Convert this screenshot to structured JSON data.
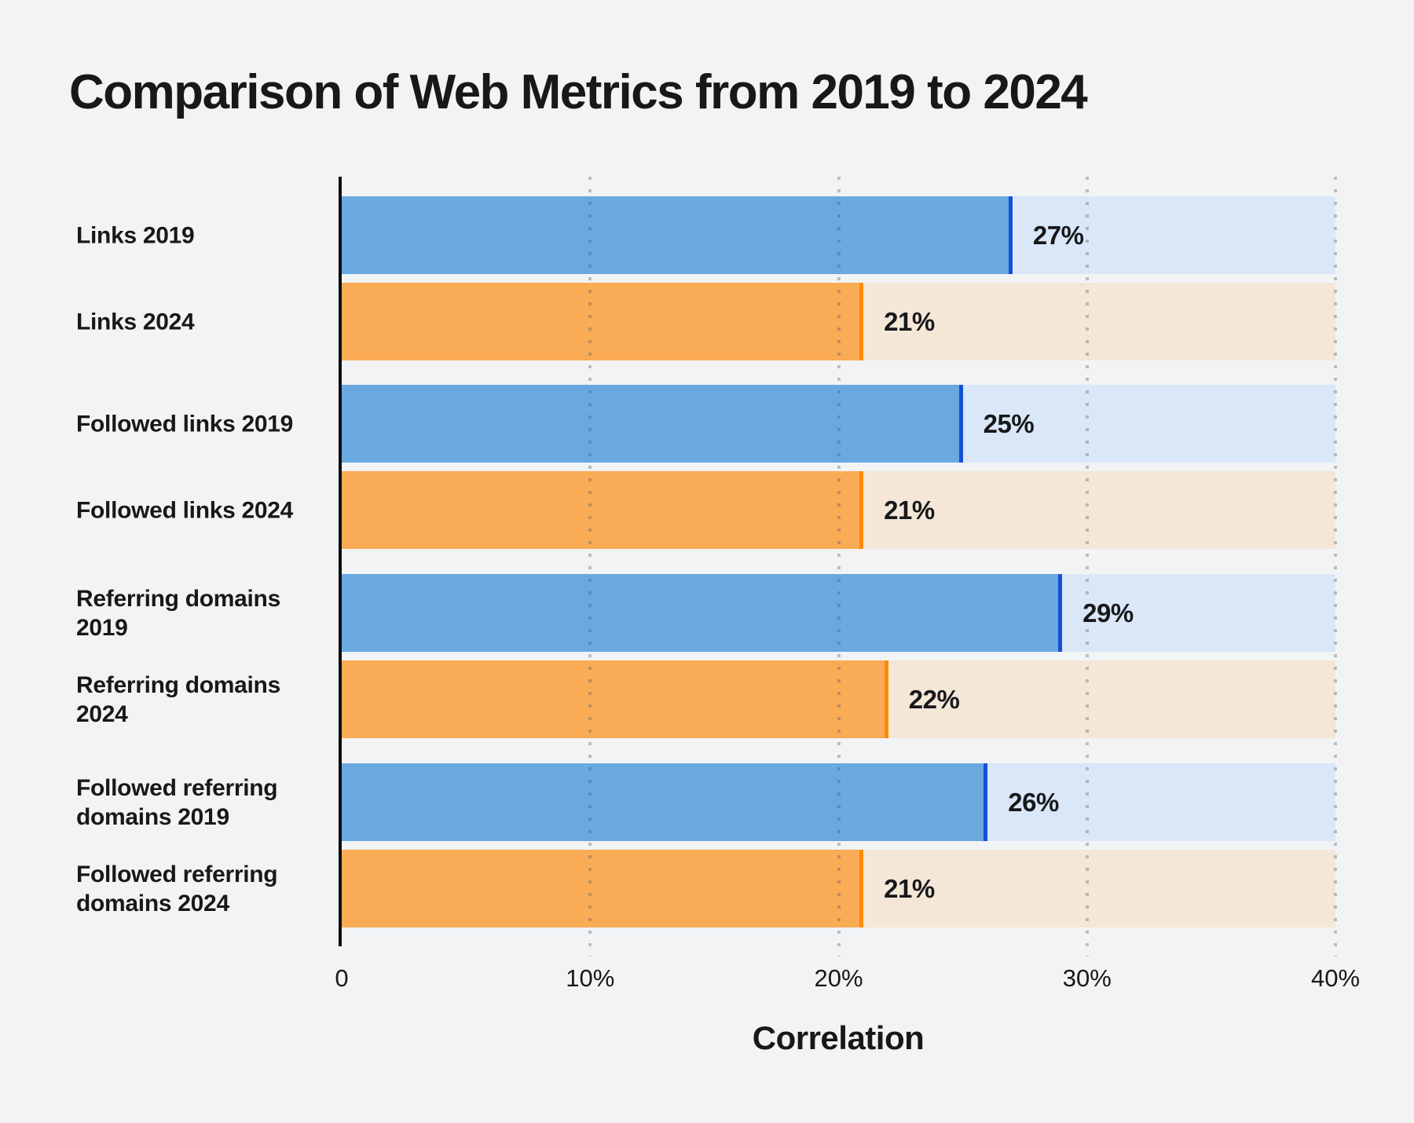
{
  "colors": {
    "background": "#f2f3f5",
    "text": "#17181a",
    "axis_line": "#0d0d0d",
    "grid_dot_rgba": "rgba(73,79,86,0.33)"
  },
  "chart_data": {
    "type": "bar",
    "orientation": "horizontal",
    "title": "Comparison of Web Metrics from 2019 to 2024",
    "xlabel": "Correlation",
    "xlim": [
      0,
      40
    ],
    "x_tick_values": [
      0,
      10,
      20,
      30,
      40
    ],
    "x_tick_labels": [
      "0",
      "10%",
      "20%",
      "30%",
      "40%"
    ],
    "grid": "vertical-dotted",
    "legend": "none",
    "categories": [
      "Links 2019",
      "Links 2024",
      "Followed links 2019",
      "Followed links 2024",
      "Referring domains 2019",
      "Referring domains 2024",
      "Followed referring domains 2019",
      "Followed referring domains 2024"
    ],
    "values": [
      27,
      21,
      25,
      21,
      29,
      22,
      26,
      21
    ],
    "value_labels": [
      "27%",
      "21%",
      "25%",
      "21%",
      "29%",
      "22%",
      "26%",
      "21%"
    ],
    "bar_series_index": [
      0,
      1,
      0,
      1,
      0,
      1,
      0,
      1
    ],
    "series": [
      {
        "name": "2019",
        "fill": "#69a9e0",
        "edge": "#1451d6",
        "track": "#d9e7f8"
      },
      {
        "name": "2024",
        "fill": "#f9ab56",
        "edge": "#fb8c00",
        "track": "#f4e7d8"
      }
    ]
  }
}
